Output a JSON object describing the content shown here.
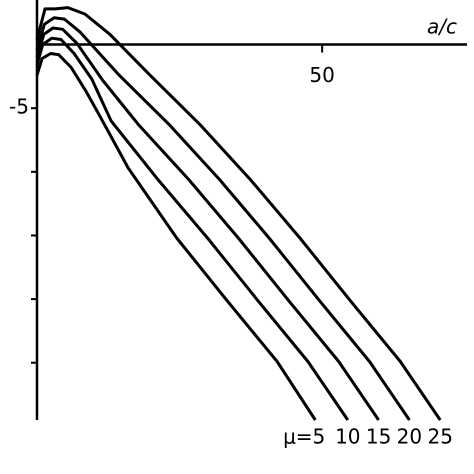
{
  "chart_data": {
    "type": "line",
    "x_label": "a/c",
    "xlim": [
      0,
      75.4
    ],
    "ylim": [
      -29.5,
      3.5
    ],
    "xticks": [
      50
    ],
    "yticks": [
      -5
    ],
    "yticks_minor": [
      -10,
      -15,
      -20,
      -25
    ],
    "series": [
      {
        "name": "μ=5",
        "color": "#000000",
        "x": [
          0,
          0.9,
          2.4,
          3.8,
          6,
          8.5,
          11,
          16,
          24.5,
          33.3,
          42.1,
          48.8
        ],
        "values": [
          -2.4,
          -1.1,
          -0.7,
          -0.8,
          -1.8,
          -3.6,
          -5.6,
          -9.7,
          -15.2,
          -20.1,
          -24.9,
          -29.5
        ]
      },
      {
        "name": "10",
        "color": "#000000",
        "x": [
          0,
          1,
          2.6,
          4.2,
          6.5,
          9.6,
          13,
          21.2,
          29.9,
          38.7,
          47.5,
          54.5
        ],
        "values": [
          -1.6,
          0,
          0.5,
          0.4,
          -0.7,
          -2.7,
          -6.0,
          -10.6,
          -15.2,
          -20.1,
          -24.9,
          -29.5
        ]
      },
      {
        "name": "15",
        "color": "#000000",
        "x": [
          0,
          1.2,
          2.8,
          4.5,
          7,
          11.5,
          17.8,
          26.6,
          35.3,
          44.1,
          52.9,
          59.9
        ],
        "values": [
          -1,
          0.8,
          1.3,
          1.2,
          0.1,
          -2.8,
          -6.3,
          -10.6,
          -15.2,
          -20.1,
          -24.9,
          -29.5
        ]
      },
      {
        "name": "20",
        "color": "#000000",
        "x": [
          0,
          1.3,
          3,
          4.8,
          7.5,
          14.4,
          23.2,
          32,
          40.7,
          49.5,
          58.3,
          65.3
        ],
        "values": [
          -0.4,
          1.6,
          2.1,
          2.0,
          1.0,
          -2.4,
          -6.3,
          -10.6,
          -15.2,
          -20.1,
          -24.9,
          -29.5
        ]
      },
      {
        "name": "25",
        "color": "#000000",
        "x": [
          0,
          1.4,
          3.2,
          5.4,
          8.4,
          12.8,
          19.8,
          28.6,
          37.4,
          46.1,
          54.9,
          63.7,
          70.7
        ],
        "values": [
          0.4,
          2.8,
          2.8,
          2.9,
          2.4,
          0.8,
          -2.4,
          -6.3,
          -10.6,
          -15.2,
          -20.1,
          -24.9,
          -29.5
        ]
      }
    ]
  }
}
